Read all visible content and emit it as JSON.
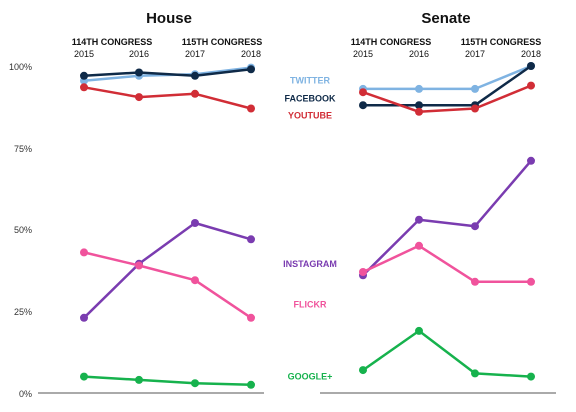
{
  "chart_data": {
    "type": "line",
    "y_ticks": [
      "100%",
      "75%",
      "50%",
      "25%",
      "0%"
    ],
    "ylim": [
      0,
      100
    ],
    "x": [
      "2015",
      "2016",
      "2017",
      "2018"
    ],
    "grid": false,
    "panels": [
      {
        "title": "House",
        "congress_labels": [
          "114TH CONGRESS",
          "115TH CONGRESS"
        ],
        "series": [
          {
            "name": "TWITTER",
            "color": "#7fb3e2",
            "values": [
              95.5,
              97,
              97.5,
              99.5
            ]
          },
          {
            "name": "FACEBOOK",
            "color": "#0f2a48",
            "values": [
              97,
              98,
              97,
              99
            ]
          },
          {
            "name": "YOUTUBE",
            "color": "#d12d36",
            "values": [
              93.5,
              90.5,
              91.5,
              87
            ]
          },
          {
            "name": "INSTAGRAM",
            "color": "#7a3cb0",
            "values": [
              23,
              39.5,
              52,
              47
            ]
          },
          {
            "name": "FLICKR",
            "color": "#f0539c",
            "values": [
              43,
              39,
              34.5,
              23
            ]
          },
          {
            "name": "GOOGLE+",
            "color": "#16b24d",
            "values": [
              5,
              4,
              3,
              2.5
            ]
          }
        ]
      },
      {
        "title": "Senate",
        "congress_labels": [
          "114TH CONGRESS",
          "115TH CONGRESS"
        ],
        "series": [
          {
            "name": "TWITTER",
            "color": "#7fb3e2",
            "values": [
              93,
              93,
              93,
              100
            ]
          },
          {
            "name": "FACEBOOK",
            "color": "#0f2a48",
            "values": [
              88,
              88,
              88,
              100
            ]
          },
          {
            "name": "YOUTUBE",
            "color": "#d12d36",
            "values": [
              92,
              86,
              87,
              94
            ]
          },
          {
            "name": "INSTAGRAM",
            "color": "#7a3cb0",
            "values": [
              36,
              53,
              51,
              71
            ]
          },
          {
            "name": "FLICKR",
            "color": "#f0539c",
            "values": [
              37,
              45,
              34,
              34
            ]
          },
          {
            "name": "GOOGLE+",
            "color": "#16b24d",
            "values": [
              7,
              19,
              6,
              5
            ]
          }
        ]
      }
    ],
    "legend_labels": [
      {
        "text": "TWITTER",
        "color": "#7fb3e2",
        "anchor_value": 95.5
      },
      {
        "text": "FACEBOOK",
        "color": "#0f2a48",
        "anchor_value": 90
      },
      {
        "text": "YOUTUBE",
        "color": "#d12d36",
        "anchor_value": 84.8
      },
      {
        "text": "INSTAGRAM",
        "color": "#7a3cb0",
        "anchor_value": 39.5
      },
      {
        "text": "FLICKR",
        "color": "#f0539c",
        "anchor_value": 27
      },
      {
        "text": "GOOGLE+",
        "color": "#16b24d",
        "anchor_value": 5
      }
    ]
  }
}
